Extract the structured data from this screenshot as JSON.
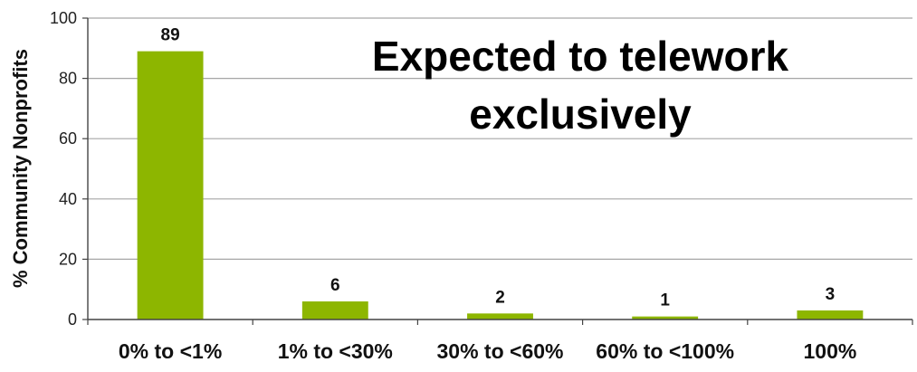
{
  "chart_data": {
    "type": "bar",
    "title_lines": [
      "Expected to telework",
      "exclusively"
    ],
    "xlabel": "",
    "ylabel": "% Community Nonprofits",
    "categories": [
      "0% to <1%",
      "1% to <30%",
      "30% to <60%",
      "60% to <100%",
      "100%"
    ],
    "values": [
      89,
      6,
      2,
      1,
      3
    ],
    "data_labels": [
      "89",
      "6",
      "2",
      "1",
      "3"
    ],
    "y_ticks": [
      0,
      20,
      40,
      60,
      80,
      100
    ],
    "ylim": [
      0,
      100
    ],
    "grid": true,
    "bar_color": "#8DB600",
    "grid_color": "#A6A6A6"
  }
}
